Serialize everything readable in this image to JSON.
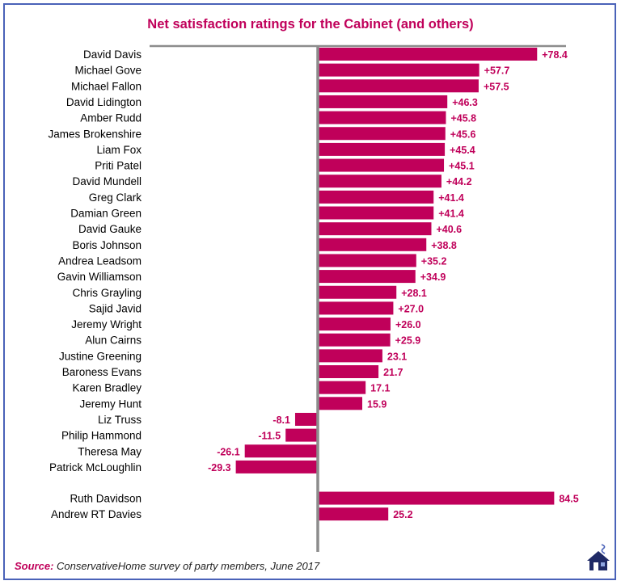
{
  "chart_data": {
    "type": "bar",
    "orientation": "horizontal",
    "title": "Net satisfaction ratings for the Cabinet (and others)",
    "xlim": [
      -32,
      88
    ],
    "grid": false,
    "categories": [
      "David Davis",
      "Michael Gove",
      "Michael Fallon",
      "David Lidington",
      "Amber Rudd",
      "James Brokenshire",
      "Liam Fox",
      "Priti Patel",
      "David Mundell",
      "Greg Clark",
      "Damian Green",
      "David Gauke",
      "Boris Johnson",
      "Andrea Leadsom",
      "Gavin Williamson",
      "Chris Grayling",
      "Sajid Javid",
      "Jeremy Wright",
      "Alun Cairns",
      "Justine Greening",
      "Baroness Evans",
      "Karen Bradley",
      "Jeremy Hunt",
      "Liz Truss",
      "Philip Hammond",
      "Theresa May",
      "Patrick McLoughlin",
      "Ruth Davidson",
      "Andrew RT Davies"
    ],
    "values": [
      78.4,
      57.7,
      57.5,
      46.3,
      45.8,
      45.6,
      45.4,
      45.1,
      44.2,
      41.4,
      41.4,
      40.6,
      38.8,
      35.2,
      34.9,
      28.1,
      27.0,
      26.0,
      25.9,
      23.1,
      21.7,
      17.1,
      15.9,
      -8.1,
      -11.5,
      -26.1,
      -29.3,
      84.5,
      25.2
    ],
    "data_labels": [
      "+78.4",
      "+57.7",
      "+57.5",
      "+46.3",
      "+45.8",
      "+45.6",
      "+45.4",
      "+45.1",
      "+44.2",
      "+41.4",
      "+41.4",
      "+40.6",
      "+38.8",
      "+35.2",
      "+34.9",
      "+28.1",
      "+27.0",
      "+26.0",
      "+25.9",
      "23.1",
      "21.7",
      "17.1",
      "15.9",
      "-8.1",
      "-11.5",
      "-26.1",
      "-29.3",
      "84.5",
      "25.2"
    ],
    "groups": [
      {
        "name": "Cabinet",
        "count": 27
      },
      {
        "name": "others",
        "count": 2
      }
    ]
  },
  "source": {
    "label": "Source:",
    "text": "ConservativeHome survey of party members, June 2017"
  },
  "colors": {
    "bar": "#c0005a",
    "label": "#c0005a",
    "axis": "#8c8c8c",
    "border": "#4a62b8",
    "title": "#c0005a"
  },
  "logo_icon": "house-icon"
}
